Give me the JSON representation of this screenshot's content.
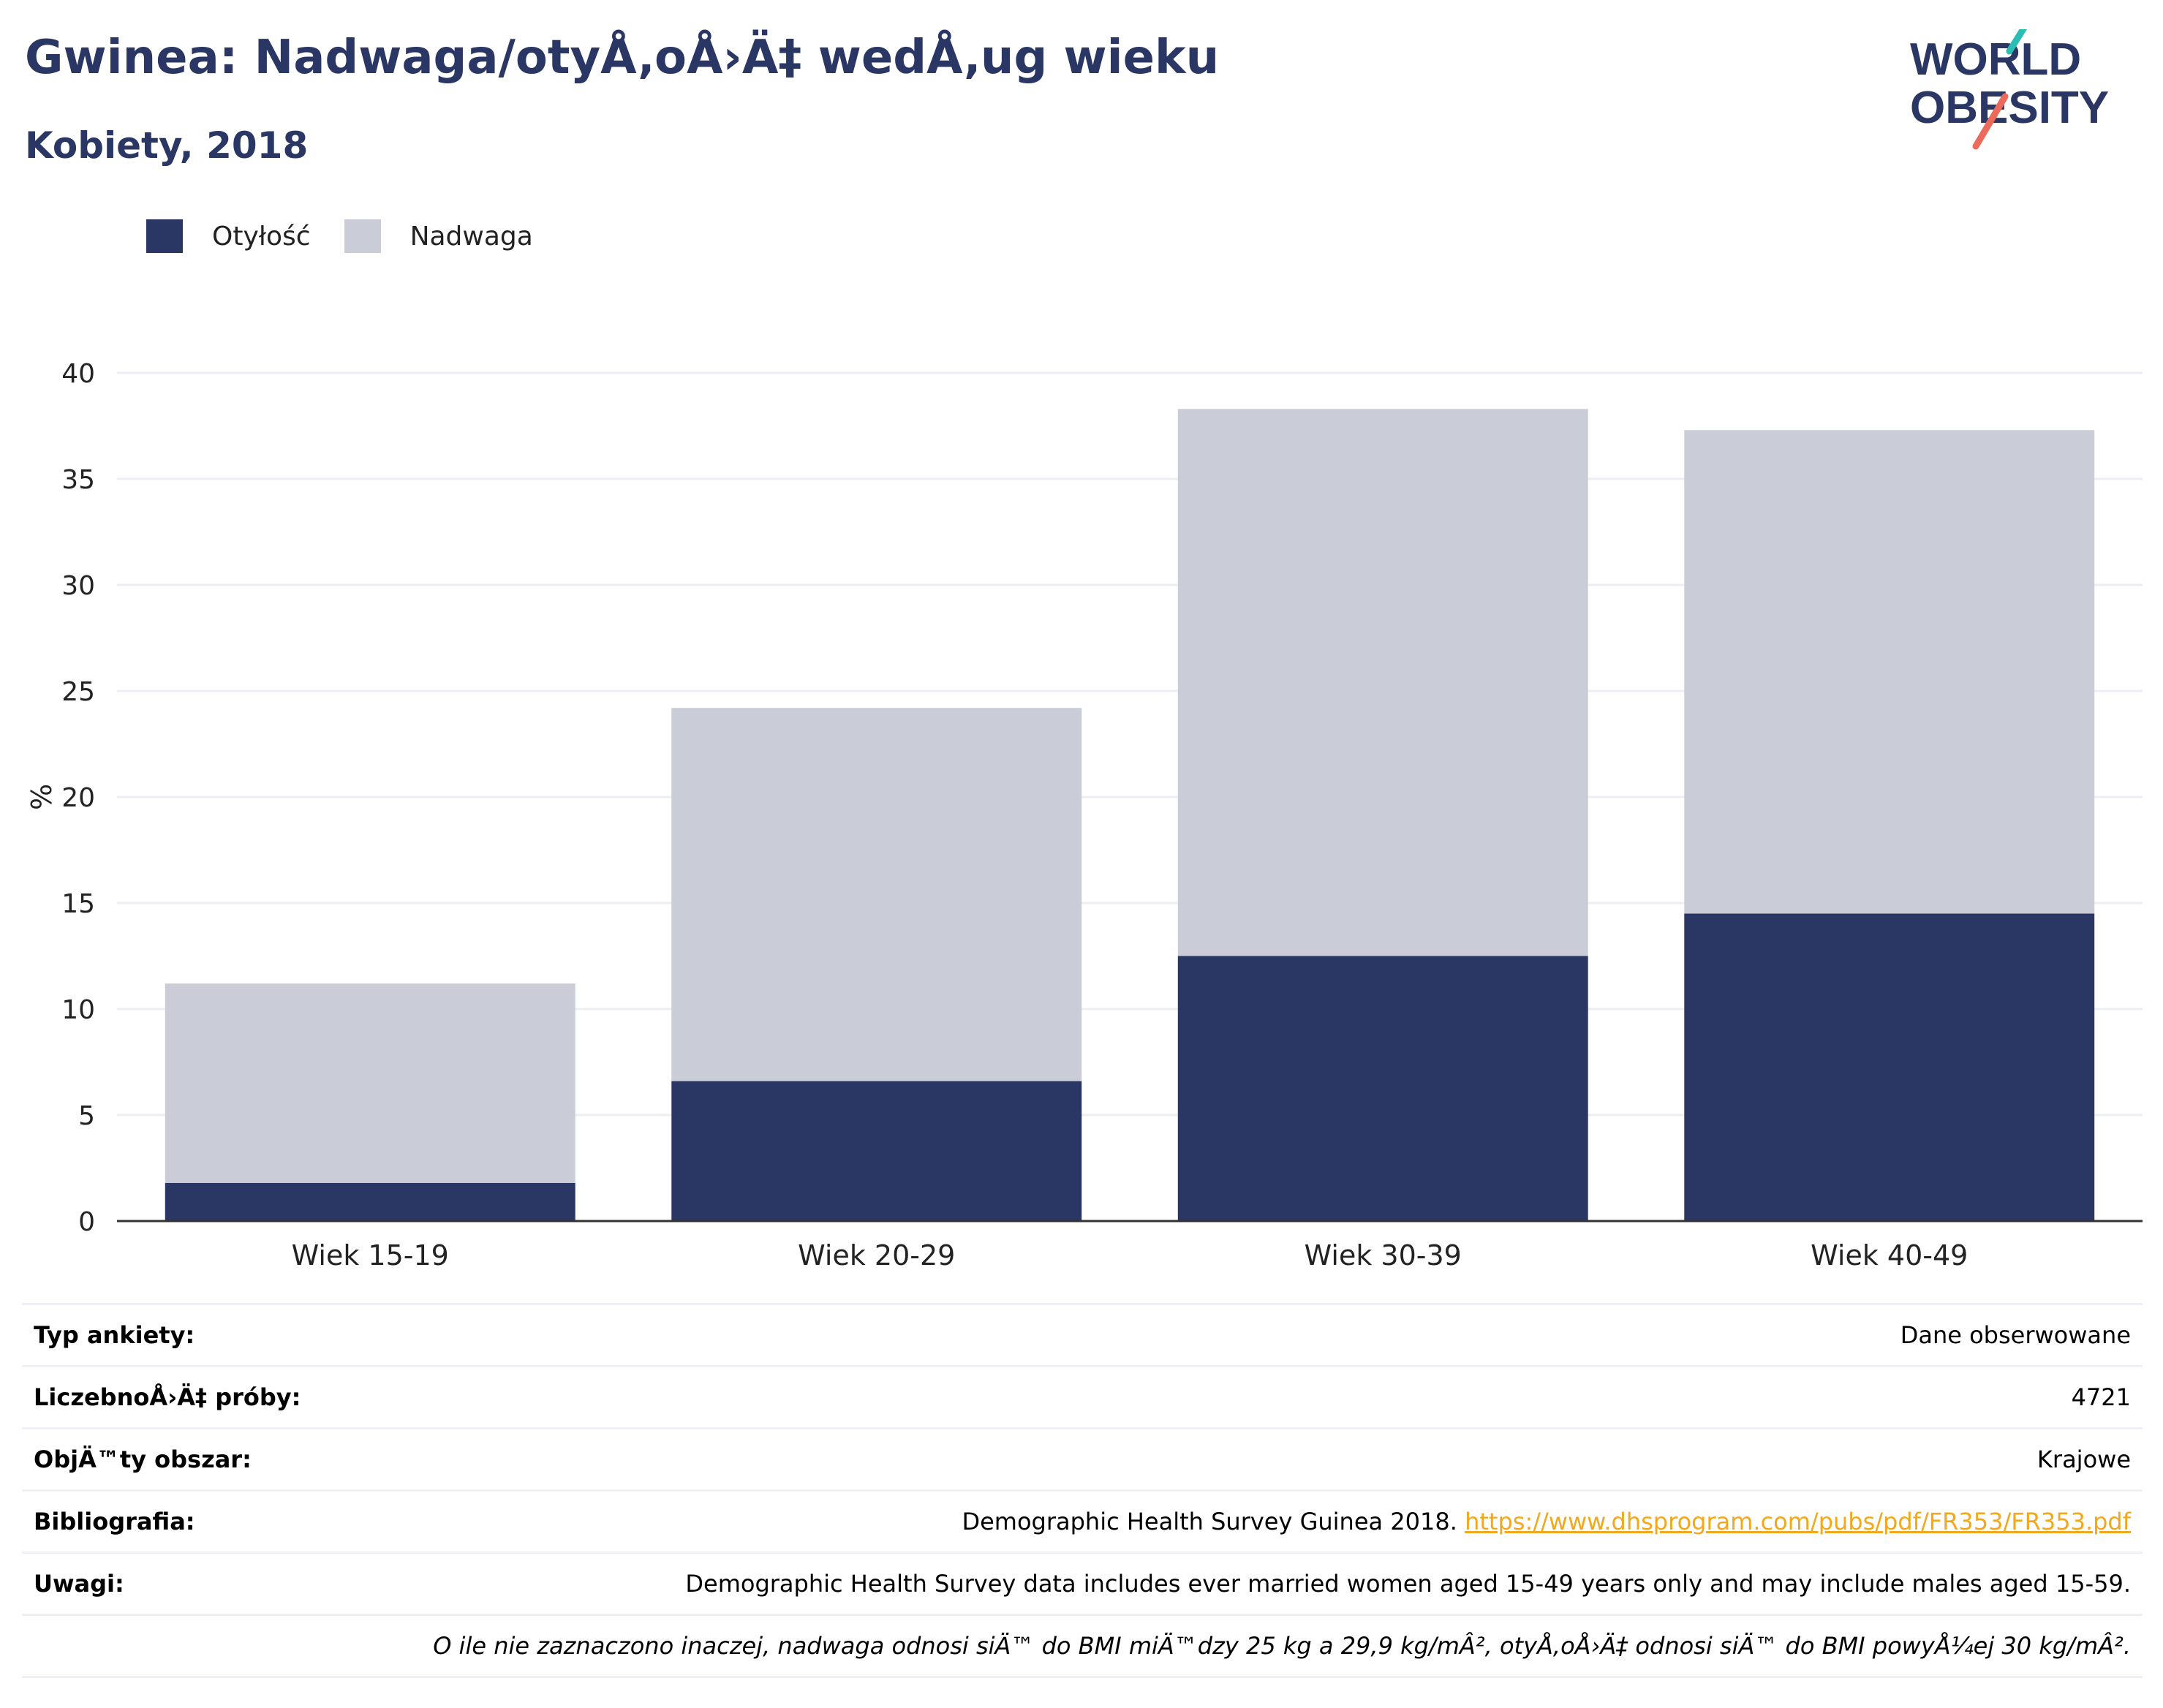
{
  "header": {
    "title": "Gwinea: Nadwaga/otyÅ‚oÅ›Ä‡ wedÅ‚ug wieku",
    "subtitle": "Kobiety, 2018"
  },
  "logo": {
    "line1": "WORLD",
    "line2": "OBESITY"
  },
  "colors": {
    "obesity": "#2a3663",
    "overweight": "#cacdd8",
    "accent_teal": "#2bbcb4",
    "accent_coral": "#ec6a5c",
    "link": "#f2a81d"
  },
  "legend": [
    {
      "label": "Otyłość",
      "color": "#2a3663"
    },
    {
      "label": "Nadwaga",
      "color": "#cacdd8"
    }
  ],
  "chart_data": {
    "type": "bar",
    "stacked": true,
    "categories": [
      "Wiek 15-19",
      "Wiek 20-29",
      "Wiek 30-39",
      "Wiek 40-49"
    ],
    "series": [
      {
        "name": "Otyłość",
        "values": [
          1.8,
          6.6,
          12.5,
          14.5
        ]
      },
      {
        "name": "Nadwaga",
        "values": [
          9.4,
          17.6,
          25.8,
          22.8
        ]
      }
    ],
    "ylabel": "%",
    "ylim": [
      0,
      40
    ],
    "yticks": [
      0,
      5,
      10,
      15,
      20,
      25,
      30,
      35,
      40
    ],
    "grid": true,
    "legend_position": "top-left"
  },
  "meta": {
    "rows": [
      {
        "label": "Typ ankiety:",
        "value": "Dane obserwowane"
      },
      {
        "label": "LiczebnoÅ›Ä‡ próby:",
        "value": "4721"
      },
      {
        "label": "ObjÄ™ty obszar:",
        "value": "Krajowe"
      },
      {
        "label": "Bibliografia:",
        "value": "Demographic Health Survey Guinea 2018.",
        "link": "https://www.dhsprogram.com/pubs/pdf/FR353/FR353.pdf"
      },
      {
        "label": "Uwagi:",
        "value": "Demographic Health Survey data includes ever married women aged 15-49 years only and may include males aged 15-59."
      }
    ],
    "note": "O ile nie zaznaczono inaczej, nadwaga odnosi siÄ™ do BMI miÄ™dzy 25 kg a 29,9 kg/mÂ², otyÅ‚oÅ›Ä‡ odnosi siÄ™ do BMI powyÅ¼ej 30 kg/mÂ²."
  }
}
